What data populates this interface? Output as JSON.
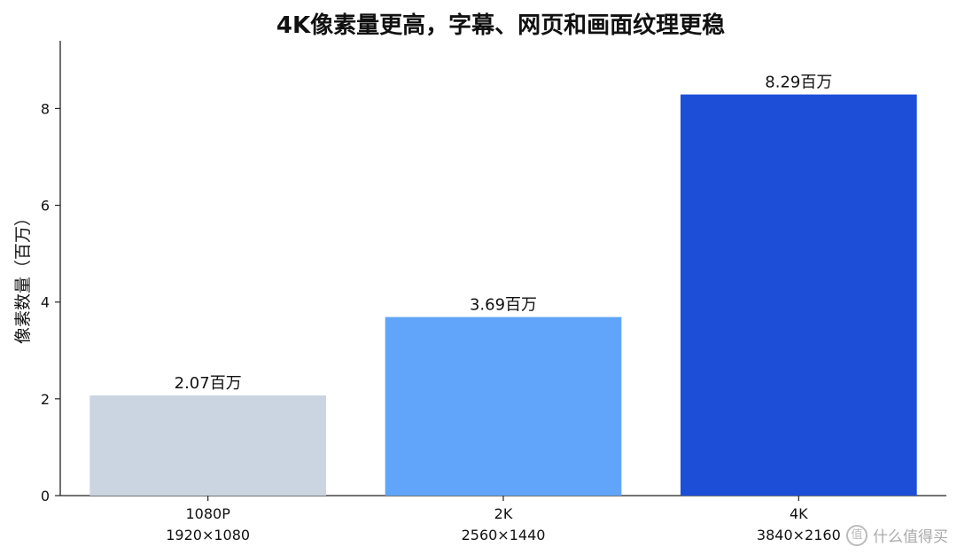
{
  "chart_data": {
    "type": "bar",
    "title": "4K像素量更高，字幕、网页和画面纹理更稳",
    "ylabel": "像素数量（百万）",
    "xlabel": "",
    "ylim": [
      0,
      9.4
    ],
    "yticks": [
      0,
      2,
      4,
      6,
      8
    ],
    "categories": [
      "1080P",
      "2K",
      "4K"
    ],
    "subcategories": [
      "1920×1080",
      "2560×1440",
      "3840×2160"
    ],
    "values": [
      2.07,
      3.69,
      8.29
    ],
    "data_labels": [
      "2.07百万",
      "3.69百万",
      "8.29百万"
    ],
    "colors": [
      "#cbd5e1",
      "#60a5fa",
      "#1d4ed8"
    ],
    "grid": false,
    "legend": "none"
  },
  "watermark": {
    "icon": "zhi-icon",
    "text": "什么值得买"
  }
}
